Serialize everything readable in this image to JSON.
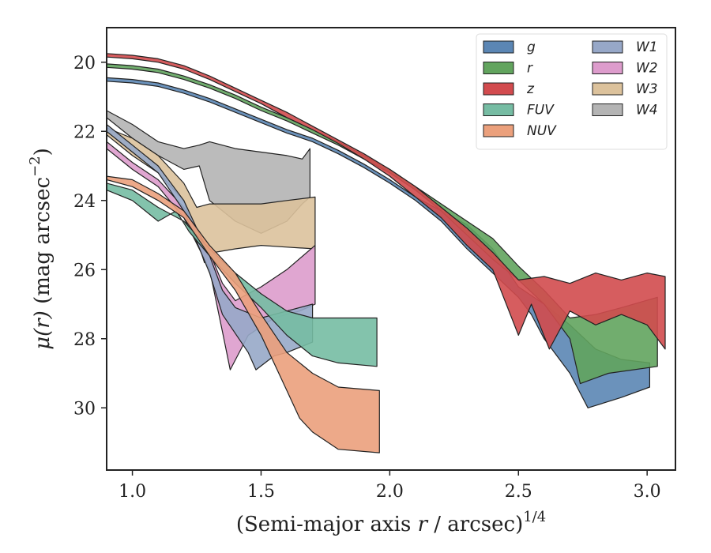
{
  "chart_data": {
    "type": "area",
    "title": "",
    "xlabel": "(Semi-major axis r / arcsec)^(1/4)",
    "ylabel": "μ(r) (mag arcsec^−2)",
    "xlim": [
      0.9,
      3.11
    ],
    "ylim": [
      31.8,
      19.0
    ],
    "y_inverted": true,
    "grid": false,
    "legend_position": "upper-right",
    "x_ticks": [
      1.0,
      1.5,
      2.0,
      2.5,
      3.0
    ],
    "x_tick_labels": [
      "1.0",
      "1.5",
      "2.0",
      "2.5",
      "3.0"
    ],
    "y_ticks": [
      20,
      22,
      24,
      26,
      28,
      30
    ],
    "y_tick_labels": [
      "20",
      "22",
      "24",
      "26",
      "28",
      "30"
    ],
    "legend_columns": [
      [
        "g",
        "r",
        "z",
        "FUV",
        "NUV"
      ],
      [
        "W1",
        "W2",
        "W3",
        "W4"
      ]
    ],
    "series": [
      {
        "name": "W4",
        "color": "#b4b4b4",
        "upper": [
          [
            0.9,
            21.4
          ],
          [
            1.0,
            21.8
          ],
          [
            1.1,
            22.3
          ],
          [
            1.2,
            22.5
          ],
          [
            1.26,
            22.4
          ],
          [
            1.3,
            22.3
          ],
          [
            1.4,
            22.5
          ],
          [
            1.5,
            22.6
          ],
          [
            1.6,
            22.7
          ],
          [
            1.66,
            22.8
          ],
          [
            1.69,
            22.5
          ]
        ],
        "lower": [
          [
            0.9,
            21.6
          ],
          [
            1.0,
            22.2
          ],
          [
            1.1,
            22.7
          ],
          [
            1.2,
            23.1
          ],
          [
            1.26,
            23.0
          ],
          [
            1.3,
            24.0
          ],
          [
            1.4,
            24.6
          ],
          [
            1.5,
            24.95
          ],
          [
            1.6,
            24.6
          ],
          [
            1.66,
            24.1
          ],
          [
            1.69,
            23.9
          ]
        ]
      },
      {
        "name": "W3",
        "color": "#dcc29c",
        "upper": [
          [
            0.9,
            21.9
          ],
          [
            1.0,
            22.2
          ],
          [
            1.1,
            22.7
          ],
          [
            1.2,
            23.5
          ],
          [
            1.25,
            24.2
          ],
          [
            1.3,
            24.1
          ],
          [
            1.4,
            24.1
          ],
          [
            1.5,
            24.1
          ],
          [
            1.6,
            24.0
          ],
          [
            1.71,
            23.9
          ]
        ],
        "lower": [
          [
            0.9,
            22.1
          ],
          [
            1.0,
            22.7
          ],
          [
            1.1,
            23.2
          ],
          [
            1.2,
            24.0
          ],
          [
            1.25,
            25.1
          ],
          [
            1.28,
            25.8
          ],
          [
            1.32,
            25.5
          ],
          [
            1.4,
            25.4
          ],
          [
            1.5,
            25.3
          ],
          [
            1.6,
            25.35
          ],
          [
            1.71,
            25.4
          ]
        ]
      },
      {
        "name": "W2",
        "color": "#dd9ccc",
        "upper": [
          [
            0.9,
            22.3
          ],
          [
            1.0,
            22.9
          ],
          [
            1.1,
            23.4
          ],
          [
            1.2,
            24.2
          ],
          [
            1.3,
            25.5
          ],
          [
            1.35,
            26.4
          ],
          [
            1.4,
            26.9
          ],
          [
            1.5,
            26.5
          ],
          [
            1.6,
            26.0
          ],
          [
            1.71,
            25.3
          ]
        ],
        "lower": [
          [
            0.9,
            22.5
          ],
          [
            1.0,
            23.1
          ],
          [
            1.1,
            23.6
          ],
          [
            1.2,
            24.5
          ],
          [
            1.3,
            26.0
          ],
          [
            1.35,
            27.8
          ],
          [
            1.38,
            28.9
          ],
          [
            1.45,
            27.9
          ],
          [
            1.55,
            27.4
          ],
          [
            1.65,
            27.2
          ],
          [
            1.71,
            27.0
          ]
        ]
      },
      {
        "name": "W1",
        "color": "#97a8c8",
        "upper": [
          [
            0.9,
            21.8
          ],
          [
            1.0,
            22.4
          ],
          [
            1.1,
            23.0
          ],
          [
            1.2,
            24.0
          ],
          [
            1.3,
            25.6
          ],
          [
            1.35,
            26.6
          ],
          [
            1.4,
            27.1
          ],
          [
            1.5,
            27.4
          ],
          [
            1.6,
            27.2
          ],
          [
            1.7,
            27.0
          ]
        ],
        "lower": [
          [
            0.9,
            22.0
          ],
          [
            1.0,
            22.6
          ],
          [
            1.1,
            23.2
          ],
          [
            1.2,
            24.3
          ],
          [
            1.3,
            26.1
          ],
          [
            1.35,
            27.3
          ],
          [
            1.45,
            28.4
          ],
          [
            1.48,
            28.9
          ],
          [
            1.55,
            28.5
          ],
          [
            1.6,
            28.4
          ],
          [
            1.7,
            28.1
          ]
        ]
      },
      {
        "name": "FUV",
        "color": "#76bca3",
        "upper": [
          [
            0.9,
            23.5
          ],
          [
            1.0,
            23.7
          ],
          [
            1.1,
            24.2
          ],
          [
            1.2,
            24.6
          ],
          [
            1.3,
            25.4
          ],
          [
            1.4,
            26.1
          ],
          [
            1.5,
            26.7
          ],
          [
            1.6,
            27.2
          ],
          [
            1.7,
            27.4
          ],
          [
            1.8,
            27.4
          ],
          [
            1.95,
            27.4
          ]
        ],
        "lower": [
          [
            0.9,
            23.7
          ],
          [
            1.0,
            24.0
          ],
          [
            1.1,
            24.6
          ],
          [
            1.17,
            24.3
          ],
          [
            1.22,
            24.9
          ],
          [
            1.3,
            25.6
          ],
          [
            1.4,
            26.4
          ],
          [
            1.5,
            27.1
          ],
          [
            1.6,
            27.9
          ],
          [
            1.7,
            28.5
          ],
          [
            1.8,
            28.7
          ],
          [
            1.95,
            28.8
          ]
        ]
      },
      {
        "name": "NUV",
        "color": "#eba07c",
        "upper": [
          [
            0.9,
            23.3
          ],
          [
            1.0,
            23.4
          ],
          [
            1.1,
            23.8
          ],
          [
            1.2,
            24.3
          ],
          [
            1.3,
            25.3
          ],
          [
            1.4,
            26.1
          ],
          [
            1.5,
            27.3
          ],
          [
            1.6,
            28.4
          ],
          [
            1.7,
            29.0
          ],
          [
            1.8,
            29.4
          ],
          [
            1.96,
            29.5
          ]
        ],
        "lower": [
          [
            0.9,
            23.4
          ],
          [
            1.0,
            23.6
          ],
          [
            1.1,
            24.0
          ],
          [
            1.2,
            24.5
          ],
          [
            1.3,
            25.6
          ],
          [
            1.4,
            26.6
          ],
          [
            1.5,
            27.9
          ],
          [
            1.6,
            29.5
          ],
          [
            1.65,
            30.3
          ],
          [
            1.7,
            30.7
          ],
          [
            1.8,
            31.2
          ],
          [
            1.96,
            31.3
          ]
        ]
      },
      {
        "name": "g",
        "color": "#5b86b4",
        "upper": [
          [
            0.9,
            20.45
          ],
          [
            1.0,
            20.5
          ],
          [
            1.1,
            20.6
          ],
          [
            1.2,
            20.8
          ],
          [
            1.3,
            21.05
          ],
          [
            1.4,
            21.35
          ],
          [
            1.5,
            21.65
          ],
          [
            1.6,
            21.95
          ],
          [
            1.7,
            22.2
          ],
          [
            1.8,
            22.55
          ],
          [
            1.9,
            22.95
          ],
          [
            2.0,
            23.4
          ],
          [
            2.1,
            23.9
          ],
          [
            2.2,
            24.3
          ],
          [
            2.3,
            24.7
          ],
          [
            2.4,
            25.4
          ],
          [
            2.5,
            26.5
          ],
          [
            2.6,
            27.0
          ],
          [
            2.7,
            27.6
          ],
          [
            2.8,
            28.3
          ],
          [
            2.9,
            28.6
          ],
          [
            3.01,
            28.7
          ]
        ],
        "lower": [
          [
            0.9,
            20.55
          ],
          [
            1.0,
            20.6
          ],
          [
            1.1,
            20.7
          ],
          [
            1.2,
            20.9
          ],
          [
            1.3,
            21.15
          ],
          [
            1.4,
            21.45
          ],
          [
            1.5,
            21.75
          ],
          [
            1.6,
            22.05
          ],
          [
            1.7,
            22.3
          ],
          [
            1.8,
            22.65
          ],
          [
            1.9,
            23.05
          ],
          [
            2.0,
            23.5
          ],
          [
            2.1,
            24.0
          ],
          [
            2.2,
            24.6
          ],
          [
            2.3,
            25.4
          ],
          [
            2.4,
            26.1
          ],
          [
            2.5,
            26.8
          ],
          [
            2.55,
            27.3
          ],
          [
            2.6,
            28.0
          ],
          [
            2.65,
            28.5
          ],
          [
            2.7,
            29.0
          ],
          [
            2.77,
            30.0
          ],
          [
            2.9,
            29.7
          ],
          [
            3.01,
            29.4
          ]
        ]
      },
      {
        "name": "r",
        "color": "#62a45e",
        "upper": [
          [
            0.9,
            20.05
          ],
          [
            1.0,
            20.1
          ],
          [
            1.1,
            20.2
          ],
          [
            1.2,
            20.4
          ],
          [
            1.3,
            20.65
          ],
          [
            1.4,
            20.95
          ],
          [
            1.5,
            21.3
          ],
          [
            1.6,
            21.6
          ],
          [
            1.7,
            21.95
          ],
          [
            1.8,
            22.3
          ],
          [
            1.9,
            22.7
          ],
          [
            2.0,
            23.1
          ],
          [
            2.1,
            23.6
          ],
          [
            2.2,
            24.1
          ],
          [
            2.3,
            24.6
          ],
          [
            2.4,
            25.1
          ],
          [
            2.5,
            25.9
          ],
          [
            2.6,
            26.6
          ],
          [
            2.7,
            27.4
          ],
          [
            2.8,
            27.3
          ],
          [
            2.9,
            27.1
          ],
          [
            3.04,
            26.8
          ]
        ],
        "lower": [
          [
            0.9,
            20.15
          ],
          [
            1.0,
            20.2
          ],
          [
            1.1,
            20.3
          ],
          [
            1.2,
            20.5
          ],
          [
            1.3,
            20.75
          ],
          [
            1.4,
            21.05
          ],
          [
            1.5,
            21.4
          ],
          [
            1.6,
            21.7
          ],
          [
            1.7,
            22.05
          ],
          [
            1.8,
            22.4
          ],
          [
            1.9,
            22.8
          ],
          [
            2.0,
            23.2
          ],
          [
            2.1,
            23.7
          ],
          [
            2.2,
            24.3
          ],
          [
            2.3,
            25.0
          ],
          [
            2.4,
            25.7
          ],
          [
            2.5,
            26.3
          ],
          [
            2.6,
            27.0
          ],
          [
            2.7,
            28.0
          ],
          [
            2.74,
            29.3
          ],
          [
            2.85,
            29.0
          ],
          [
            3.04,
            28.8
          ]
        ]
      },
      {
        "name": "z",
        "color": "#d24b4e",
        "upper": [
          [
            0.9,
            19.75
          ],
          [
            1.0,
            19.8
          ],
          [
            1.1,
            19.9
          ],
          [
            1.2,
            20.1
          ],
          [
            1.3,
            20.4
          ],
          [
            1.4,
            20.75
          ],
          [
            1.5,
            21.1
          ],
          [
            1.6,
            21.45
          ],
          [
            1.7,
            21.85
          ],
          [
            1.8,
            22.25
          ],
          [
            1.9,
            22.65
          ],
          [
            2.0,
            23.1
          ],
          [
            2.1,
            23.6
          ],
          [
            2.2,
            24.2
          ],
          [
            2.3,
            24.8
          ],
          [
            2.4,
            25.5
          ],
          [
            2.5,
            26.3
          ],
          [
            2.6,
            26.2
          ],
          [
            2.7,
            26.4
          ],
          [
            2.8,
            26.1
          ],
          [
            2.9,
            26.3
          ],
          [
            3.0,
            26.1
          ],
          [
            3.07,
            26.2
          ]
        ],
        "lower": [
          [
            0.9,
            19.85
          ],
          [
            1.0,
            19.9
          ],
          [
            1.1,
            20.0
          ],
          [
            1.2,
            20.2
          ],
          [
            1.3,
            20.5
          ],
          [
            1.4,
            20.85
          ],
          [
            1.5,
            21.2
          ],
          [
            1.6,
            21.6
          ],
          [
            1.7,
            21.95
          ],
          [
            1.8,
            22.35
          ],
          [
            1.9,
            22.8
          ],
          [
            2.0,
            23.3
          ],
          [
            2.1,
            23.9
          ],
          [
            2.2,
            24.5
          ],
          [
            2.3,
            25.3
          ],
          [
            2.4,
            26.0
          ],
          [
            2.5,
            27.9
          ],
          [
            2.55,
            27.0
          ],
          [
            2.62,
            28.3
          ],
          [
            2.7,
            27.2
          ],
          [
            2.8,
            27.6
          ],
          [
            2.9,
            27.3
          ],
          [
            3.0,
            27.6
          ],
          [
            3.07,
            28.3
          ]
        ]
      }
    ]
  }
}
